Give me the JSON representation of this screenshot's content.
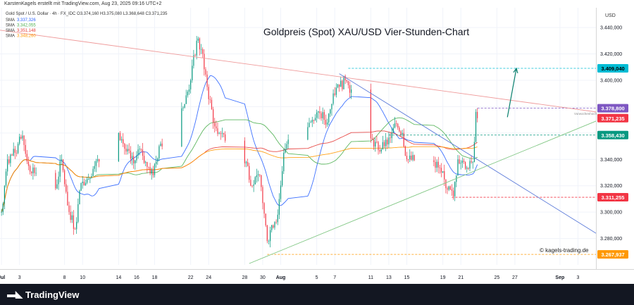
{
  "header": {
    "published_by": "KarstenKagels erstellt mit TradingView.com, Aug 23, 2025 09:16 UTC+2"
  },
  "brand": {
    "name": "TradingView"
  },
  "chart_data": {
    "type": "candlestick",
    "title": "Goldpreis (Spot) XAU/USD Vier-Stunden-Chart",
    "symbol_line": "Gold Spot / U.S. Dollar · 4h · FX_IDC  O3.374,160  H3.375,080  L3.368,648  C3.371,235",
    "currency": "USD",
    "watermark": "© kagels-trading.de",
    "annotation": "Vorwochenhoch",
    "ylim": [
      3260,
      3455
    ],
    "xlim": [
      "2025-06-30T20:00",
      "2025-09-05T00:00"
    ],
    "y_ticks": [
      "3.280,000",
      "3.300,000",
      "3.320,000",
      "3.340,000",
      "3.360,000",
      "3.380,000",
      "3.400,000",
      "3.420,000",
      "3.440,000"
    ],
    "x_ticks": [
      {
        "label": "Jul",
        "date": "2025-07-01"
      },
      {
        "label": "3",
        "date": "2025-07-03"
      },
      {
        "label": "8",
        "date": "2025-07-08"
      },
      {
        "label": "10",
        "date": "2025-07-10"
      },
      {
        "label": "14",
        "date": "2025-07-14"
      },
      {
        "label": "16",
        "date": "2025-07-16"
      },
      {
        "label": "18",
        "date": "2025-07-18"
      },
      {
        "label": "22",
        "date": "2025-07-22"
      },
      {
        "label": "24",
        "date": "2025-07-24"
      },
      {
        "label": "28",
        "date": "2025-07-28"
      },
      {
        "label": "30",
        "date": "2025-07-30"
      },
      {
        "label": "Aug",
        "date": "2025-08-01"
      },
      {
        "label": "5",
        "date": "2025-08-05"
      },
      {
        "label": "7",
        "date": "2025-08-07"
      },
      {
        "label": "11",
        "date": "2025-08-11"
      },
      {
        "label": "13",
        "date": "2025-08-13"
      },
      {
        "label": "15",
        "date": "2025-08-15"
      },
      {
        "label": "19",
        "date": "2025-08-19"
      },
      {
        "label": "21",
        "date": "2025-08-21"
      },
      {
        "label": "25",
        "date": "2025-08-25"
      },
      {
        "label": "27",
        "date": "2025-08-27"
      },
      {
        "label": "Sep",
        "date": "2025-09-01"
      },
      {
        "label": "3",
        "date": "2025-09-03"
      }
    ],
    "legend": [
      {
        "name": "SMA",
        "value": "3.337,326",
        "color": "#2962ff"
      },
      {
        "name": "SMA",
        "value": "3.342,055",
        "color": "#4caf50"
      },
      {
        "name": "SMA",
        "value": "3.351,148",
        "color": "#e53935"
      },
      {
        "name": "SMA",
        "value": "3.348,260",
        "color": "#ff9800"
      }
    ],
    "price_labels": [
      {
        "value": 3409.04,
        "text": "3.409,040",
        "bg": "#00bcd4",
        "fg": "#000000",
        "line": "#00bcd4"
      },
      {
        "value": 3378.8,
        "text": "3.378,800",
        "bg": "#7e57c2",
        "fg": "#ffffff",
        "line": "#7e57c2"
      },
      {
        "value": 3371.235,
        "text": "3.371,235",
        "bg": "#f23645",
        "fg": "#ffffff",
        "line": ""
      },
      {
        "value": 3358.43,
        "text": "3.358,430",
        "bg": "#089981",
        "fg": "#ffffff",
        "line": "#089981"
      },
      {
        "value": 3311.255,
        "text": "3.311,255",
        "bg": "#f23645",
        "fg": "#ffffff",
        "line": "#f23645"
      },
      {
        "value": 3267.937,
        "text": "3.267,937",
        "bg": "#ff9800",
        "fg": "#ffffff",
        "line": "#ff9800"
      }
    ],
    "trendlines": [
      {
        "name": "resistance",
        "color": "#ef9a9a",
        "from": {
          "date": "2025-06-30T20:00",
          "price": 3438
        },
        "to": {
          "date": "2025-09-05T00:00",
          "price": 3376
        }
      },
      {
        "name": "down-channel",
        "color": "#5c7bd9",
        "from": {
          "date": "2025-08-07T12:00",
          "price": 3405
        },
        "to": {
          "date": "2025-09-05T00:00",
          "price": 3284
        }
      },
      {
        "name": "support",
        "color": "#81c784",
        "from": {
          "date": "2025-07-28T12:00",
          "price": 3261
        },
        "to": {
          "date": "2025-09-05T00:00",
          "price": 3369
        }
      }
    ],
    "projection_arrow": {
      "color": "#087f6d",
      "from": {
        "date": "2025-08-26T04:00",
        "price": 3372
      },
      "to": {
        "date": "2025-08-27T04:00",
        "price": 3409
      }
    },
    "ohlc_anchors": [
      {
        "date": "2025-07-01T00:00",
        "close": 3300
      },
      {
        "date": "2025-07-01T16:00",
        "close": 3340
      },
      {
        "date": "2025-07-02T12:00",
        "close": 3345
      },
      {
        "date": "2025-07-03T08:00",
        "close": 3358
      },
      {
        "date": "2025-07-04T00:00",
        "close": 3335
      },
      {
        "date": "2025-07-07T00:00",
        "close": 3318
      },
      {
        "date": "2025-07-07T16:00",
        "close": 3340
      },
      {
        "date": "2025-07-08T08:00",
        "close": 3305
      },
      {
        "date": "2025-07-09T04:00",
        "close": 3287
      },
      {
        "date": "2025-07-09T20:00",
        "close": 3322
      },
      {
        "date": "2025-07-10T12:00",
        "close": 3325
      },
      {
        "date": "2025-07-11T08:00",
        "close": 3335
      },
      {
        "date": "2025-07-14T00:00",
        "close": 3360
      },
      {
        "date": "2025-07-14T20:00",
        "close": 3346
      },
      {
        "date": "2025-07-15T16:00",
        "close": 3337
      },
      {
        "date": "2025-07-16T08:00",
        "close": 3348
      },
      {
        "date": "2025-07-17T00:00",
        "close": 3338
      },
      {
        "date": "2025-07-17T20:00",
        "close": 3328
      },
      {
        "date": "2025-07-18T12:00",
        "close": 3350
      },
      {
        "date": "2025-07-21T08:00",
        "close": 3382
      },
      {
        "date": "2025-07-22T00:00",
        "close": 3400
      },
      {
        "date": "2025-07-22T16:00",
        "close": 3430
      },
      {
        "date": "2025-07-23T08:00",
        "close": 3420
      },
      {
        "date": "2025-07-23T20:00",
        "close": 3395
      },
      {
        "date": "2025-07-24T16:00",
        "close": 3365
      },
      {
        "date": "2025-07-25T12:00",
        "close": 3360
      },
      {
        "date": "2025-07-28T04:00",
        "close": 3338
      },
      {
        "date": "2025-07-28T20:00",
        "close": 3320
      },
      {
        "date": "2025-07-29T16:00",
        "close": 3328
      },
      {
        "date": "2025-07-30T12:00",
        "close": 3278
      },
      {
        "date": "2025-07-31T00:00",
        "close": 3290
      },
      {
        "date": "2025-07-31T16:00",
        "close": 3298
      },
      {
        "date": "2025-08-01T08:00",
        "close": 3345
      },
      {
        "date": "2025-08-01T20:00",
        "close": 3355
      },
      {
        "date": "2025-08-04T12:00",
        "close": 3370
      },
      {
        "date": "2025-08-05T08:00",
        "close": 3375
      },
      {
        "date": "2025-08-06T04:00",
        "close": 3368
      },
      {
        "date": "2025-08-06T20:00",
        "close": 3390
      },
      {
        "date": "2025-08-07T12:00",
        "close": 3395
      },
      {
        "date": "2025-08-08T04:00",
        "close": 3400
      },
      {
        "date": "2025-08-08T20:00",
        "close": 3393
      },
      {
        "date": "2025-08-11T04:00",
        "close": 3355
      },
      {
        "date": "2025-08-11T20:00",
        "close": 3347
      },
      {
        "date": "2025-08-12T12:00",
        "close": 3350
      },
      {
        "date": "2025-08-13T08:00",
        "close": 3360
      },
      {
        "date": "2025-08-13T20:00",
        "close": 3367
      },
      {
        "date": "2025-08-14T12:00",
        "close": 3360
      },
      {
        "date": "2025-08-15T00:00",
        "close": 3340
      },
      {
        "date": "2025-08-18T00:00",
        "close": 3338
      },
      {
        "date": "2025-08-18T20:00",
        "close": 3330
      },
      {
        "date": "2025-08-19T12:00",
        "close": 3317
      },
      {
        "date": "2025-08-20T04:00",
        "close": 3312
      },
      {
        "date": "2025-08-20T16:00",
        "close": 3340
      },
      {
        "date": "2025-08-21T08:00",
        "close": 3338
      },
      {
        "date": "2025-08-21T20:00",
        "close": 3333
      },
      {
        "date": "2025-08-22T08:00",
        "close": 3338
      },
      {
        "date": "2025-08-22T16:00",
        "close": 3376
      },
      {
        "date": "2025-08-22T20:00",
        "close": 3371.235
      }
    ]
  }
}
